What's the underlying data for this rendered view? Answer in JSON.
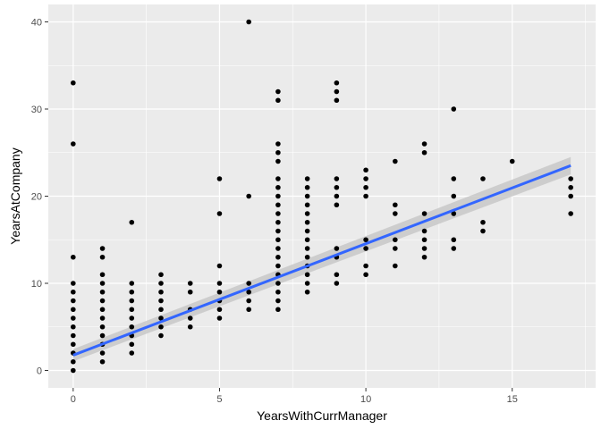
{
  "chart_data": {
    "type": "scatter",
    "title": "",
    "xlabel": "YearsWithCurrManager",
    "ylabel": "YearsAtCompany",
    "xlim": [
      -0.85,
      17.85
    ],
    "ylim": [
      -2,
      42
    ],
    "x_ticks": [
      0,
      5,
      10,
      15
    ],
    "y_ticks": [
      0,
      10,
      20,
      30,
      40
    ],
    "grid": true,
    "colors": {
      "panel": "#ebebeb",
      "grid_major": "#ffffff",
      "points": "#000000",
      "fit_line": "#3366ff",
      "confidence_band": "#c8c8c8"
    },
    "points": [
      [
        0,
        0
      ],
      [
        0,
        1
      ],
      [
        0,
        2
      ],
      [
        0,
        3
      ],
      [
        0,
        4
      ],
      [
        0,
        5
      ],
      [
        0,
        6
      ],
      [
        0,
        7
      ],
      [
        0,
        8
      ],
      [
        0,
        9
      ],
      [
        0,
        10
      ],
      [
        0,
        13
      ],
      [
        0,
        26
      ],
      [
        0,
        33
      ],
      [
        1,
        1
      ],
      [
        1,
        2
      ],
      [
        1,
        3
      ],
      [
        1,
        4
      ],
      [
        1,
        5
      ],
      [
        1,
        6
      ],
      [
        1,
        7
      ],
      [
        1,
        8
      ],
      [
        1,
        9
      ],
      [
        1,
        10
      ],
      [
        1,
        11
      ],
      [
        1,
        13
      ],
      [
        1,
        14
      ],
      [
        2,
        2
      ],
      [
        2,
        3
      ],
      [
        2,
        4
      ],
      [
        2,
        5
      ],
      [
        2,
        6
      ],
      [
        2,
        7
      ],
      [
        2,
        8
      ],
      [
        2,
        9
      ],
      [
        2,
        10
      ],
      [
        2,
        17
      ],
      [
        3,
        4
      ],
      [
        3,
        5
      ],
      [
        3,
        6
      ],
      [
        3,
        7
      ],
      [
        3,
        8
      ],
      [
        3,
        9
      ],
      [
        3,
        10
      ],
      [
        3,
        11
      ],
      [
        4,
        5
      ],
      [
        4,
        6
      ],
      [
        4,
        7
      ],
      [
        4,
        9
      ],
      [
        4,
        10
      ],
      [
        5,
        6
      ],
      [
        5,
        7
      ],
      [
        5,
        8
      ],
      [
        5,
        9
      ],
      [
        5,
        10
      ],
      [
        5,
        12
      ],
      [
        5,
        18
      ],
      [
        5,
        22
      ],
      [
        6,
        7
      ],
      [
        6,
        8
      ],
      [
        6,
        9
      ],
      [
        6,
        10
      ],
      [
        6,
        20
      ],
      [
        6,
        40
      ],
      [
        7,
        7
      ],
      [
        7,
        8
      ],
      [
        7,
        9
      ],
      [
        7,
        10
      ],
      [
        7,
        11
      ],
      [
        7,
        12
      ],
      [
        7,
        13
      ],
      [
        7,
        14
      ],
      [
        7,
        15
      ],
      [
        7,
        16
      ],
      [
        7,
        17
      ],
      [
        7,
        18
      ],
      [
        7,
        19
      ],
      [
        7,
        20
      ],
      [
        7,
        21
      ],
      [
        7,
        22
      ],
      [
        7,
        24
      ],
      [
        7,
        25
      ],
      [
        7,
        26
      ],
      [
        7,
        31
      ],
      [
        7,
        32
      ],
      [
        8,
        9
      ],
      [
        8,
        10
      ],
      [
        8,
        11
      ],
      [
        8,
        12
      ],
      [
        8,
        13
      ],
      [
        8,
        14
      ],
      [
        8,
        15
      ],
      [
        8,
        16
      ],
      [
        8,
        17
      ],
      [
        8,
        18
      ],
      [
        8,
        19
      ],
      [
        8,
        20
      ],
      [
        8,
        21
      ],
      [
        8,
        22
      ],
      [
        9,
        10
      ],
      [
        9,
        11
      ],
      [
        9,
        13
      ],
      [
        9,
        14
      ],
      [
        9,
        19
      ],
      [
        9,
        20
      ],
      [
        9,
        21
      ],
      [
        9,
        22
      ],
      [
        9,
        31
      ],
      [
        9,
        32
      ],
      [
        9,
        33
      ],
      [
        10,
        11
      ],
      [
        10,
        12
      ],
      [
        10,
        14
      ],
      [
        10,
        15
      ],
      [
        10,
        20
      ],
      [
        10,
        21
      ],
      [
        10,
        22
      ],
      [
        10,
        23
      ],
      [
        11,
        12
      ],
      [
        11,
        14
      ],
      [
        11,
        15
      ],
      [
        11,
        18
      ],
      [
        11,
        19
      ],
      [
        11,
        24
      ],
      [
        12,
        13
      ],
      [
        12,
        14
      ],
      [
        12,
        15
      ],
      [
        12,
        16
      ],
      [
        12,
        18
      ],
      [
        12,
        25
      ],
      [
        12,
        26
      ],
      [
        13,
        14
      ],
      [
        13,
        15
      ],
      [
        13,
        18
      ],
      [
        13,
        20
      ],
      [
        13,
        22
      ],
      [
        13,
        30
      ],
      [
        14,
        16
      ],
      [
        14,
        17
      ],
      [
        14,
        22
      ],
      [
        15,
        24
      ],
      [
        17,
        18
      ],
      [
        17,
        20
      ],
      [
        17,
        21
      ],
      [
        17,
        22
      ]
    ],
    "fit": {
      "method": "lm",
      "intercept": 1.75,
      "slope": 1.28,
      "x_range": [
        0,
        17
      ]
    },
    "confidence_band": {
      "upper": [
        2.45,
        24.5
      ],
      "lower": [
        1.05,
        22.5
      ]
    }
  }
}
